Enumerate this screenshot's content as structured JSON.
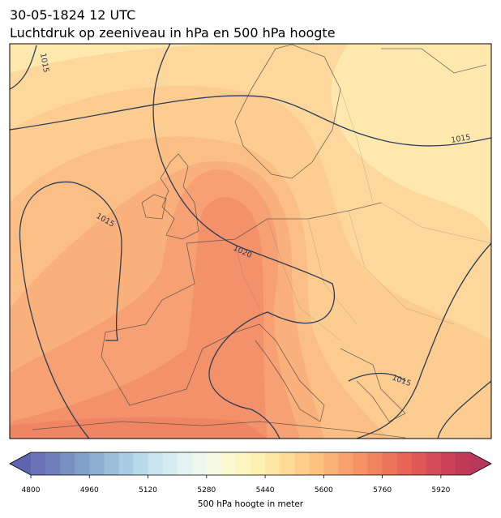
{
  "header": {
    "title": "30-05-1824 12 UTC",
    "subtitle": "Luchtdruk op zeeniveau in hPa en 500 hPa hoogte"
  },
  "map": {
    "isobar_labels": [
      "1015",
      "1015",
      "1015",
      "1020",
      "1015"
    ]
  },
  "colorbar": {
    "label": "500 hPa hoogte in meter",
    "lim": [
      4800,
      6000
    ],
    "ticks": [
      4800,
      4960,
      5120,
      5280,
      5440,
      5600,
      5760,
      5920
    ],
    "under_color": "#5f64ae",
    "over_color": "#b8385b",
    "colors": [
      "#6c72b8",
      "#7080bc",
      "#7690c2",
      "#80a0c8",
      "#8daecf",
      "#9cbed9",
      "#aacde3",
      "#b9daea",
      "#c8e4ef",
      "#d6ecf1",
      "#e3f2f2",
      "#eef7ee",
      "#f6fae4",
      "#fbf9d2",
      "#fdf5c0",
      "#feefb2",
      "#fee7a4",
      "#fedb96",
      "#fdcf8b",
      "#fcc280",
      "#fbb276",
      "#f9a26d",
      "#f69366",
      "#f1835f",
      "#ec745b",
      "#e56657",
      "#dd5856",
      "#d44c57",
      "#ca4257",
      "#c03a58"
    ]
  }
}
